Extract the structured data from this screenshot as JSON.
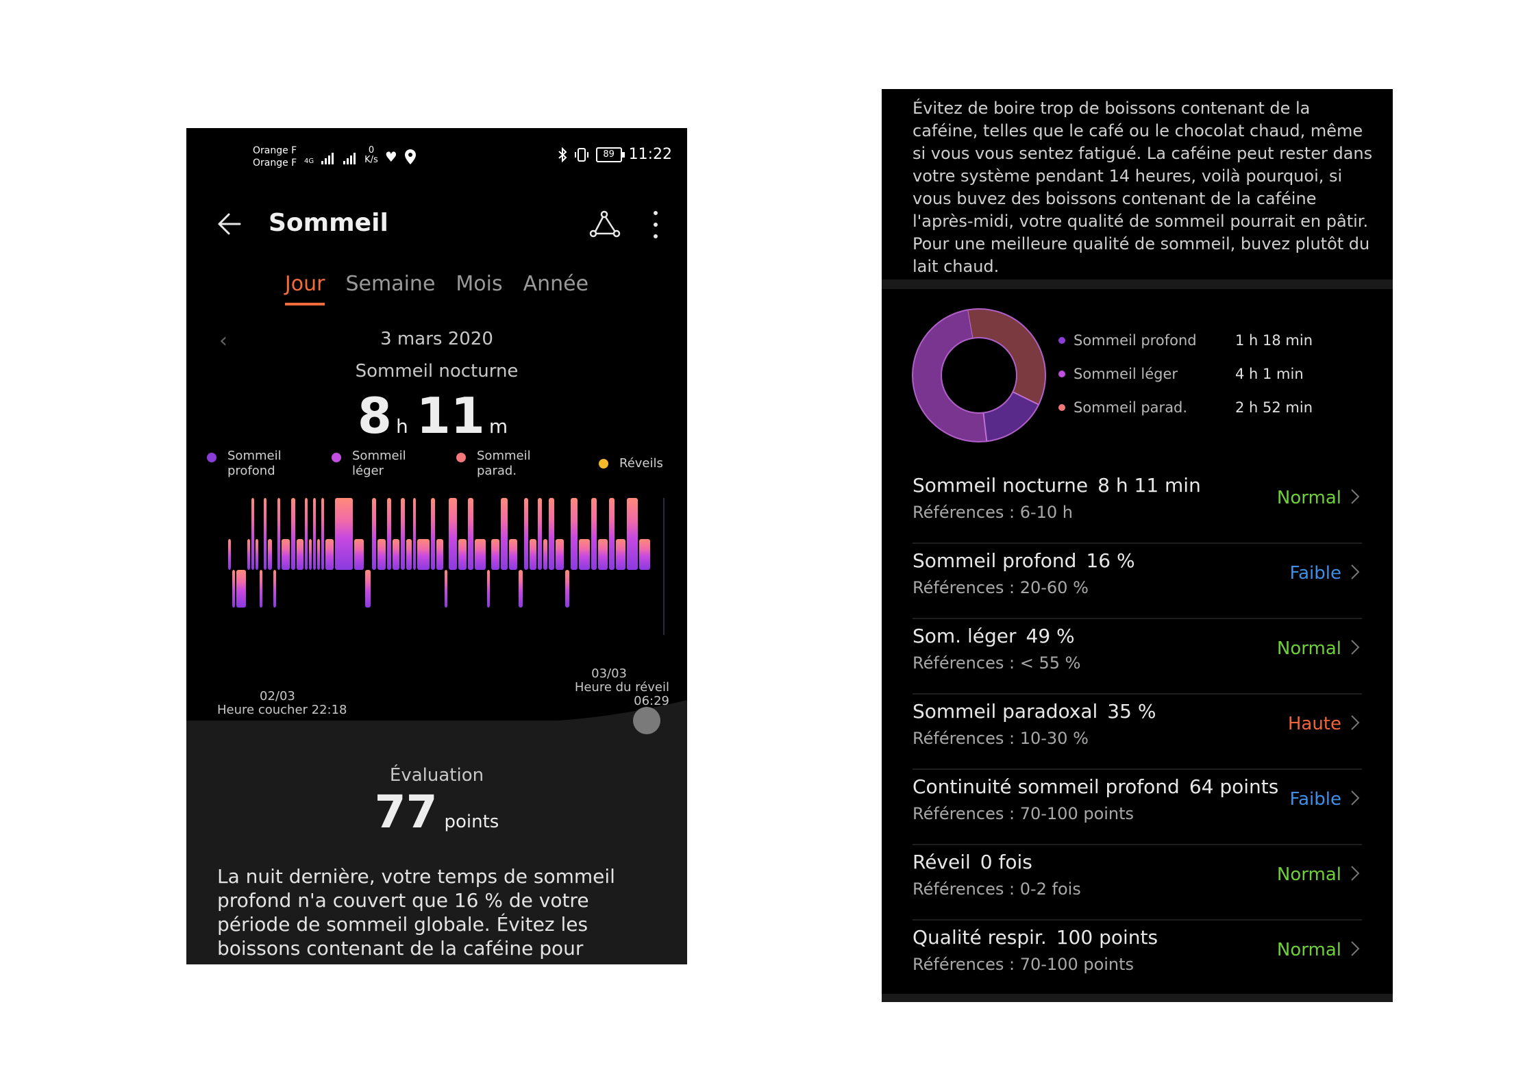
{
  "left": {
    "status_bar": {
      "carrier1": "Orange F",
      "carrier2": "Orange F",
      "net_type": "4G",
      "speed_value": "0",
      "speed_unit": "K/s",
      "battery": "89",
      "time": "11:22"
    },
    "header": {
      "title": "Sommeil",
      "back_icon": "back-arrow-icon",
      "share_icon": "route-icon",
      "menu_icon": "more-vertical-icon"
    },
    "tabs": [
      {
        "label": "Jour"
      },
      {
        "label": "Semaine"
      },
      {
        "label": "Mois"
      },
      {
        "label": "Année"
      }
    ],
    "date": "3 mars 2020",
    "sleep_type": "Sommeil nocturne",
    "duration": {
      "hours": "8",
      "h_unit": "h",
      "minutes": "11",
      "m_unit": "m"
    },
    "legend": [
      {
        "line1": "Sommeil",
        "line2": "profond",
        "color": "#8b3dd8"
      },
      {
        "line1": "Sommeil",
        "line2": "léger",
        "color": "#c14fe0"
      },
      {
        "line1": "Sommeil",
        "line2": "parad.",
        "color": "#f2787a"
      },
      {
        "line1": "Réveils",
        "line2": "",
        "color": "#f6b92b"
      }
    ],
    "chart": {
      "start_date": "02/03",
      "start_label": "Heure coucher 22:18",
      "end_date": "03/03",
      "end_label": "Heure du réveil 06:29"
    },
    "evaluation": {
      "label": "Évaluation",
      "score": "77",
      "unit": "points"
    },
    "advice": "La nuit dernière, votre temps de sommeil profond n'a couvert que 16 % de votre période de sommeil globale. Évitez les boissons contenant de la caféine pour favoriser le sommeil profond."
  },
  "right": {
    "tip": "Évitez de boire trop de boissons contenant de la caféine, telles que le café ou le chocolat chaud, même si vous vous sentez fatigué. La caféine peut rester dans votre système pendant 14 heures, voilà pourquoi, si vous buvez des boissons contenant de la caféine l'après-midi, votre qualité de sommeil pourrait en pâtir. Pour une meilleure qualité de sommeil, buvez plutôt du lait chaud.",
    "donut": [
      {
        "label": "Sommeil profond",
        "value": "1 h 18 min",
        "minutes": 78,
        "color": "#5a2a8a"
      },
      {
        "label": "Sommeil léger",
        "value": "4 h 1 min",
        "minutes": 241,
        "color": "#7a3590"
      },
      {
        "label": "Sommeil parad.",
        "value": "2 h 52 min",
        "minutes": 172,
        "color": "#7a3a40"
      }
    ],
    "metrics": [
      {
        "title": "Sommeil nocturne",
        "value": "8 h 11 min",
        "ref": "Références : 6-10 h",
        "status": "Normal",
        "status_color": "#6fcf3a"
      },
      {
        "title": "Sommeil profond",
        "value": "16 %",
        "ref": "Références : 20-60 %",
        "status": "Faible",
        "status_color": "#3d8fe8"
      },
      {
        "title": "Som. léger",
        "value": "49 %",
        "ref": "Références : < 55 %",
        "status": "Normal",
        "status_color": "#6fcf3a"
      },
      {
        "title": "Sommeil paradoxal",
        "value": "35 %",
        "ref": "Références : 10-30 %",
        "status": "Haute",
        "status_color": "#f0643a"
      },
      {
        "title": "Continuité sommeil profond",
        "value": "64 points",
        "ref": "Références : 70-100 points",
        "status": "Faible",
        "status_color": "#3d8fe8"
      },
      {
        "title": "Réveil",
        "value": "0 fois",
        "ref": "Références : 0-2 fois",
        "status": "Normal",
        "status_color": "#6fcf3a"
      },
      {
        "title": "Qualité respir.",
        "value": "100 points",
        "ref": "Références : 70-100 points",
        "status": "Normal",
        "status_color": "#6fcf3a"
      }
    ]
  }
}
